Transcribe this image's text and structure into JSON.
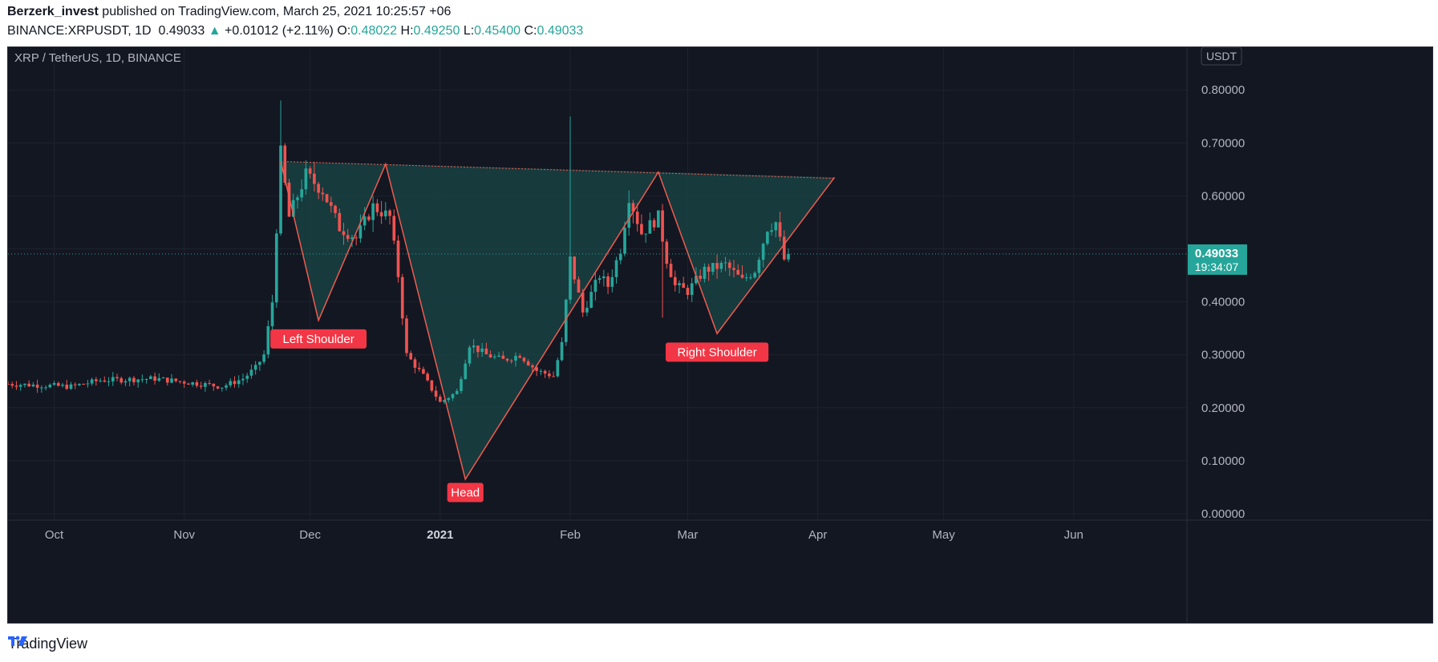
{
  "header": {
    "author": "Berzerk_invest",
    "published": "published on TradingView.com, March 25, 2021 10:25:57 +06",
    "symbol": "BINANCE:XRPUSDT, 1D",
    "last": "0.49033",
    "change": "+0.01012 (+2.11%)",
    "open_label": "O:",
    "open": "0.48022",
    "high_label": "H:",
    "high": "0.49250",
    "low_label": "L:",
    "low": "0.45400",
    "close_label": "C:",
    "close": "0.49033"
  },
  "chart": {
    "pair_title": "XRP / TetherUS, 1D, BINANCE",
    "currency": "USDT",
    "last_price": "0.49033",
    "countdown": "19:34:07"
  },
  "footer": {
    "brand": "TradingView"
  },
  "colors": {
    "bg": "#131722",
    "grid": "#1e222d",
    "up": "#26a69a",
    "down": "#ef5350",
    "pattern": "#f05b4f",
    "fill": "#1a4747",
    "text": "#b2b5be"
  },
  "chart_data": {
    "type": "candlestick",
    "y_ticks": [
      "0.00000",
      "0.10000",
      "0.20000",
      "0.30000",
      "0.40000",
      "0.50000",
      "0.60000",
      "0.70000",
      "0.80000"
    ],
    "ylim": [
      0,
      0.8
    ],
    "x_ticks": [
      {
        "label": "Oct",
        "date": "2020-10-01"
      },
      {
        "label": "Nov",
        "date": "2020-11-01"
      },
      {
        "label": "Dec",
        "date": "2020-12-01"
      },
      {
        "label": "2021",
        "date": "2021-01-01"
      },
      {
        "label": "Feb",
        "date": "2021-02-01"
      },
      {
        "label": "Mar",
        "date": "2021-03-01"
      },
      {
        "label": "Apr",
        "date": "2021-04-01"
      },
      {
        "label": "May",
        "date": "2021-05-01"
      },
      {
        "label": "Jun",
        "date": "2021-06-01"
      }
    ],
    "x_range": [
      "2020-09-20",
      "2021-06-28"
    ],
    "price_keypoints": [
      [
        "2020-09-20",
        0.245
      ],
      [
        "2020-10-05",
        0.24
      ],
      [
        "2020-10-12",
        0.252
      ],
      [
        "2020-10-25",
        0.255
      ],
      [
        "2020-11-05",
        0.245
      ],
      [
        "2020-11-10",
        0.24
      ],
      [
        "2020-11-15",
        0.255
      ],
      [
        "2020-11-18",
        0.275
      ],
      [
        "2020-11-20",
        0.3
      ],
      [
        "2020-11-22",
        0.4
      ],
      [
        "2020-11-24",
        0.68
      ],
      [
        "2020-11-26",
        0.56
      ],
      [
        "2020-11-30",
        0.64
      ],
      [
        "2020-12-04",
        0.61
      ],
      [
        "2020-12-08",
        0.54
      ],
      [
        "2020-12-12",
        0.52
      ],
      [
        "2020-12-16",
        0.58
      ],
      [
        "2020-12-20",
        0.56
      ],
      [
        "2020-12-22",
        0.45
      ],
      [
        "2020-12-24",
        0.3
      ],
      [
        "2020-12-28",
        0.26
      ],
      [
        "2021-01-01",
        0.21
      ],
      [
        "2021-01-05",
        0.23
      ],
      [
        "2021-01-08",
        0.32
      ],
      [
        "2021-01-12",
        0.3
      ],
      [
        "2021-01-16",
        0.29
      ],
      [
        "2021-01-20",
        0.3
      ],
      [
        "2021-01-24",
        0.27
      ],
      [
        "2021-01-28",
        0.26
      ],
      [
        "2021-01-30",
        0.32
      ],
      [
        "2021-02-01",
        0.48
      ],
      [
        "2021-02-04",
        0.38
      ],
      [
        "2021-02-08",
        0.45
      ],
      [
        "2021-02-10",
        0.43
      ],
      [
        "2021-02-13",
        0.5
      ],
      [
        "2021-02-15",
        0.6
      ],
      [
        "2021-02-18",
        0.53
      ],
      [
        "2021-02-22",
        0.56
      ],
      [
        "2021-02-24",
        0.48
      ],
      [
        "2021-02-26",
        0.43
      ],
      [
        "2021-03-01",
        0.42
      ],
      [
        "2021-03-05",
        0.46
      ],
      [
        "2021-03-10",
        0.47
      ],
      [
        "2021-03-14",
        0.44
      ],
      [
        "2021-03-17",
        0.46
      ],
      [
        "2021-03-20",
        0.54
      ],
      [
        "2021-03-22",
        0.55
      ],
      [
        "2021-03-24",
        0.48
      ],
      [
        "2021-03-25",
        0.49
      ]
    ],
    "spikes": [
      {
        "date": "2020-11-24",
        "high": 0.78
      },
      {
        "date": "2021-02-01",
        "high": 0.75
      },
      {
        "date": "2021-02-23",
        "low": 0.37
      }
    ],
    "pattern": {
      "zigzag": [
        [
          "2020-11-24",
          0.665
        ],
        [
          "2020-12-03",
          0.365
        ],
        [
          "2020-12-19",
          0.66
        ],
        [
          "2021-01-07",
          0.065
        ],
        [
          "2021-02-22",
          0.645
        ],
        [
          "2021-03-08",
          0.34
        ],
        [
          "2021-04-05",
          0.635
        ]
      ],
      "neckline": [
        [
          "2020-11-24",
          0.665
        ],
        [
          "2021-04-05",
          0.633
        ]
      ],
      "fills": [
        [
          [
            "2020-11-24",
            0.665
          ],
          [
            "2020-12-03",
            0.365
          ],
          [
            "2020-12-19",
            0.66
          ]
        ],
        [
          [
            "2020-12-19",
            0.66
          ],
          [
            "2021-01-07",
            0.065
          ],
          [
            "2021-02-22",
            0.645
          ]
        ],
        [
          [
            "2021-02-22",
            0.645
          ],
          [
            "2021-03-08",
            0.34
          ],
          [
            "2021-04-05",
            0.635
          ]
        ]
      ],
      "labels": [
        {
          "text": "Left Shoulder",
          "date": "2020-12-03",
          "value": 0.33
        },
        {
          "text": "Head",
          "date": "2021-01-07",
          "value": 0.04
        },
        {
          "text": "Right Shoulder",
          "date": "2021-03-08",
          "value": 0.305
        }
      ]
    },
    "last_value": 0.49033
  }
}
